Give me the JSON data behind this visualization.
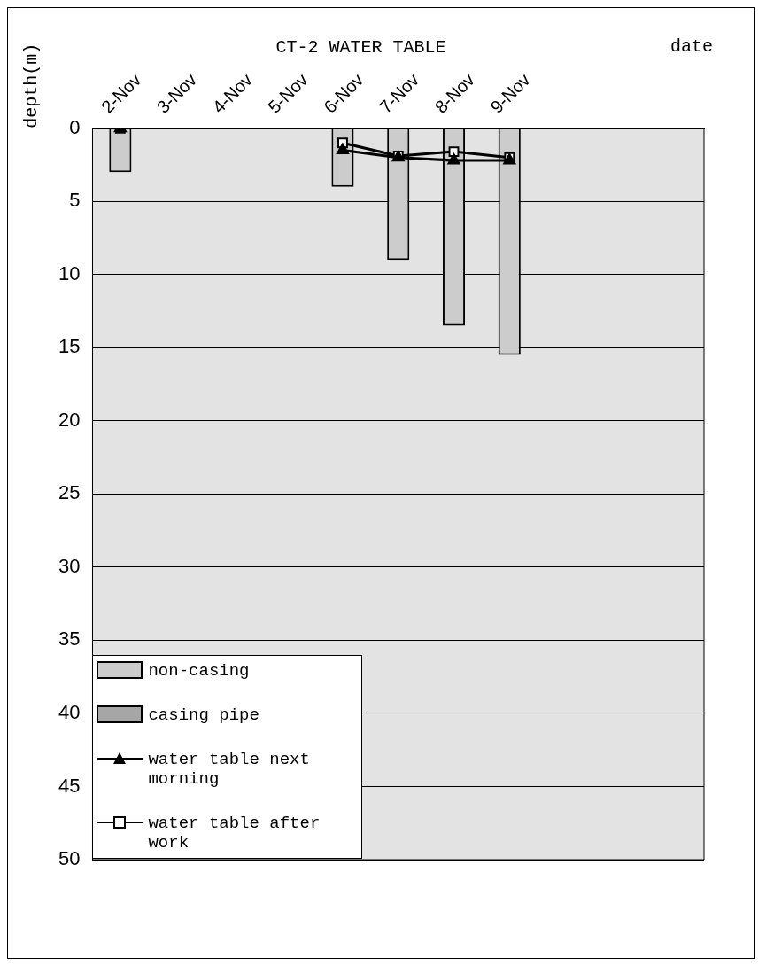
{
  "chart_data": {
    "type": "bar",
    "title": "CT-2 WATER TABLE",
    "xlabel": "date",
    "ylabel": "depth(m)",
    "categories": [
      "2-Nov",
      "3-Nov",
      "4-Nov",
      "5-Nov",
      "6-Nov",
      "7-Nov",
      "8-Nov",
      "9-Nov",
      null,
      null,
      null
    ],
    "series": [
      {
        "name": "non-casing",
        "color": "#cccccc",
        "values": [
          3,
          null,
          null,
          null,
          4,
          9,
          13.5,
          15.5,
          null,
          null,
          null
        ]
      },
      {
        "name": "casing pipe",
        "color": "#a6a6a6",
        "values": [
          null,
          null,
          null,
          null,
          null,
          null,
          null,
          null,
          null,
          null,
          null
        ]
      },
      {
        "name": "water table next morning",
        "type": "line",
        "color": "#000000",
        "marker": "triangle",
        "values": [
          0,
          null,
          null,
          null,
          1.5,
          2.0,
          2.2,
          2.2,
          null,
          null,
          null
        ]
      },
      {
        "name": "water table after work",
        "type": "line",
        "color": "#000000",
        "marker": "square",
        "values": [
          0,
          null,
          null,
          null,
          1.0,
          1.9,
          1.6,
          2.0,
          null,
          null,
          null
        ]
      }
    ],
    "ylim": [
      50,
      0
    ],
    "yticks": [
      0,
      5,
      10,
      15,
      20,
      25,
      30,
      35,
      40,
      45,
      50
    ],
    "grid": "y",
    "legend": "bottom left",
    "stacked": true
  }
}
